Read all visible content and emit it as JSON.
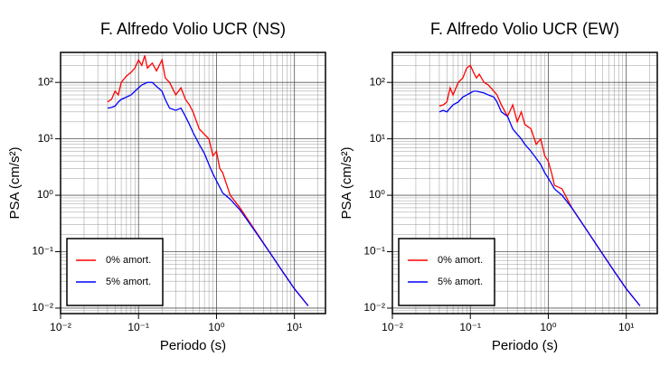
{
  "chart_data": [
    {
      "type": "line",
      "title": "F. Alfredo Volio UCR (NS)",
      "x_label": "Periodo (s)",
      "y_label": "PSA (cm/s²)",
      "log_x": true,
      "log_y": true,
      "grid": true,
      "minor_grid": true,
      "legend": "lower left",
      "xlim": [
        0.01,
        25
      ],
      "ylim": [
        0.008,
        340
      ],
      "xticks": [
        {
          "value": 0.01,
          "label": "10⁻²"
        },
        {
          "value": 0.1,
          "label": "10⁻¹"
        },
        {
          "value": 1,
          "label": "10⁰"
        },
        {
          "value": 10,
          "label": "10¹"
        }
      ],
      "yticks": [
        {
          "value": 0.01,
          "label": "10⁻²"
        },
        {
          "value": 0.1,
          "label": "10⁻¹"
        },
        {
          "value": 1,
          "label": "10⁰"
        },
        {
          "value": 10,
          "label": "10¹"
        },
        {
          "value": 100,
          "label": "10²"
        }
      ],
      "x": [
        0.04,
        0.045,
        0.05,
        0.055,
        0.06,
        0.07,
        0.08,
        0.09,
        0.1,
        0.11,
        0.12,
        0.13,
        0.15,
        0.17,
        0.2,
        0.22,
        0.25,
        0.3,
        0.35,
        0.4,
        0.45,
        0.5,
        0.6,
        0.7,
        0.8,
        0.9,
        1.0,
        1.1,
        1.2,
        1.5,
        2,
        3,
        5,
        7,
        10,
        15
      ],
      "series": [
        {
          "name": "0% amort.",
          "color": "#ff0000",
          "values": [
            45,
            50,
            70,
            60,
            100,
            130,
            150,
            180,
            250,
            200,
            300,
            180,
            220,
            160,
            250,
            120,
            100,
            60,
            80,
            50,
            40,
            30,
            15,
            12,
            10,
            5,
            6,
            3,
            2.5,
            1.0,
            0.6,
            0.26,
            0.09,
            0.045,
            0.022,
            0.011
          ]
        },
        {
          "name": "5% amort.",
          "color": "#0000ff",
          "values": [
            35,
            36,
            38,
            45,
            50,
            55,
            60,
            70,
            80,
            90,
            95,
            100,
            100,
            85,
            70,
            50,
            35,
            32,
            35,
            25,
            18,
            13,
            8,
            5.5,
            3.5,
            2.4,
            1.8,
            1.4,
            1.1,
            0.85,
            0.55,
            0.25,
            0.09,
            0.045,
            0.022,
            0.011
          ]
        }
      ]
    },
    {
      "type": "line",
      "title": "F. Alfredo Volio UCR (EW)",
      "x_label": "Periodo (s)",
      "y_label": "PSA (cm/s²)",
      "log_x": true,
      "log_y": true,
      "grid": true,
      "minor_grid": true,
      "legend": "lower left",
      "xlim": [
        0.01,
        25
      ],
      "ylim": [
        0.008,
        340
      ],
      "xticks": [
        {
          "value": 0.01,
          "label": "10⁻²"
        },
        {
          "value": 0.1,
          "label": "10⁻¹"
        },
        {
          "value": 1,
          "label": "10⁰"
        },
        {
          "value": 10,
          "label": "10¹"
        }
      ],
      "yticks": [
        {
          "value": 0.01,
          "label": "10⁻²"
        },
        {
          "value": 0.1,
          "label": "10⁻¹"
        },
        {
          "value": 1,
          "label": "10⁰"
        },
        {
          "value": 10,
          "label": "10¹"
        },
        {
          "value": 100,
          "label": "10²"
        }
      ],
      "x": [
        0.04,
        0.045,
        0.05,
        0.055,
        0.06,
        0.07,
        0.08,
        0.09,
        0.1,
        0.11,
        0.12,
        0.13,
        0.15,
        0.17,
        0.2,
        0.22,
        0.25,
        0.3,
        0.35,
        0.4,
        0.45,
        0.5,
        0.6,
        0.7,
        0.8,
        0.9,
        1.0,
        1.1,
        1.2,
        1.5,
        2,
        3,
        5,
        7,
        10,
        15
      ],
      "series": [
        {
          "name": "0% amort.",
          "color": "#ff0000",
          "values": [
            38,
            40,
            45,
            80,
            60,
            100,
            120,
            180,
            200,
            150,
            120,
            140,
            100,
            90,
            70,
            60,
            40,
            25,
            40,
            20,
            30,
            18,
            15,
            8,
            10,
            5,
            4,
            2.5,
            1.5,
            1.3,
            0.6,
            0.26,
            0.09,
            0.045,
            0.022,
            0.011
          ]
        },
        {
          "name": "5% amort.",
          "color": "#0000ff",
          "values": [
            30,
            32,
            30,
            35,
            40,
            45,
            55,
            60,
            65,
            70,
            70,
            68,
            65,
            60,
            55,
            45,
            30,
            25,
            15,
            12,
            10,
            8,
            6,
            4.5,
            3.5,
            2.5,
            2,
            1.6,
            1.3,
            1.0,
            0.6,
            0.26,
            0.09,
            0.045,
            0.022,
            0.011
          ]
        }
      ]
    }
  ]
}
